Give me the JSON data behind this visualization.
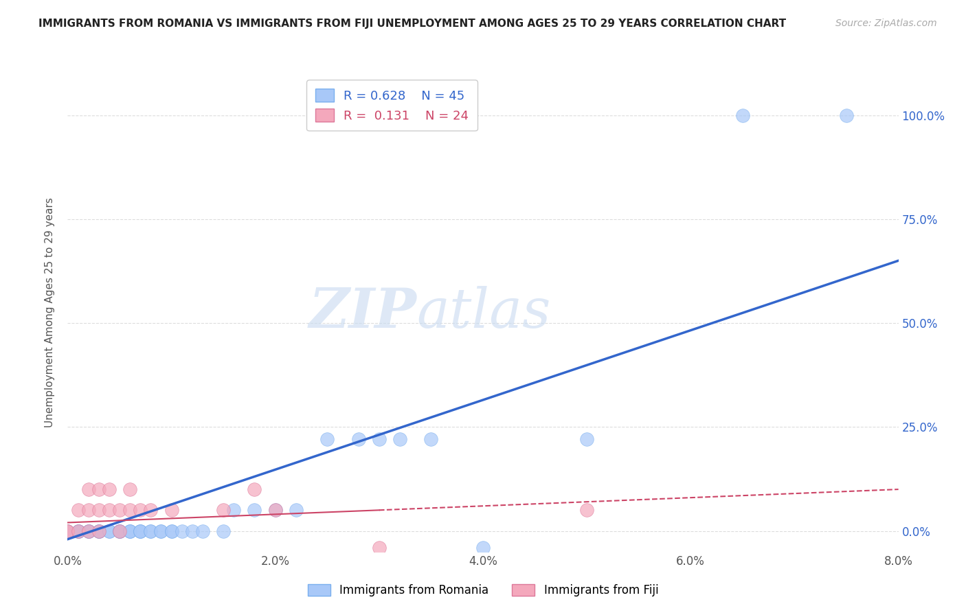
{
  "title": "IMMIGRANTS FROM ROMANIA VS IMMIGRANTS FROM FIJI UNEMPLOYMENT AMONG AGES 25 TO 29 YEARS CORRELATION CHART",
  "source": "Source: ZipAtlas.com",
  "ylabel": "Unemployment Among Ages 25 to 29 years",
  "xlim": [
    0.0,
    0.08
  ],
  "ylim": [
    -0.05,
    1.1
  ],
  "romania_R": 0.628,
  "romania_N": 45,
  "fiji_R": 0.131,
  "fiji_N": 24,
  "romania_color": "#a8c8f8",
  "fiji_color": "#f4a8bc",
  "romania_line_color": "#3366cc",
  "fiji_line_color": "#cc4466",
  "romania_scatter": [
    [
      0.0,
      0.0
    ],
    [
      0.0,
      0.0
    ],
    [
      0.001,
      0.0
    ],
    [
      0.001,
      0.0
    ],
    [
      0.001,
      0.0
    ],
    [
      0.002,
      0.0
    ],
    [
      0.002,
      0.0
    ],
    [
      0.002,
      0.0
    ],
    [
      0.003,
      0.0
    ],
    [
      0.003,
      0.0
    ],
    [
      0.003,
      0.0
    ],
    [
      0.004,
      0.0
    ],
    [
      0.004,
      0.0
    ],
    [
      0.005,
      0.0
    ],
    [
      0.005,
      0.0
    ],
    [
      0.005,
      0.0
    ],
    [
      0.006,
      0.0
    ],
    [
      0.006,
      0.0
    ],
    [
      0.006,
      0.0
    ],
    [
      0.007,
      0.0
    ],
    [
      0.007,
      0.0
    ],
    [
      0.007,
      0.0
    ],
    [
      0.008,
      0.0
    ],
    [
      0.008,
      0.0
    ],
    [
      0.009,
      0.0
    ],
    [
      0.009,
      0.0
    ],
    [
      0.01,
      0.0
    ],
    [
      0.01,
      0.0
    ],
    [
      0.011,
      0.0
    ],
    [
      0.012,
      0.0
    ],
    [
      0.013,
      0.0
    ],
    [
      0.015,
      0.0
    ],
    [
      0.016,
      0.05
    ],
    [
      0.018,
      0.05
    ],
    [
      0.02,
      0.05
    ],
    [
      0.022,
      0.05
    ],
    [
      0.025,
      0.22
    ],
    [
      0.028,
      0.22
    ],
    [
      0.03,
      0.22
    ],
    [
      0.032,
      0.22
    ],
    [
      0.035,
      0.22
    ],
    [
      0.04,
      -0.04
    ],
    [
      0.05,
      0.22
    ],
    [
      0.065,
      1.0
    ],
    [
      0.075,
      1.0
    ]
  ],
  "fiji_scatter": [
    [
      0.0,
      0.0
    ],
    [
      0.0,
      0.0
    ],
    [
      0.001,
      0.0
    ],
    [
      0.001,
      0.05
    ],
    [
      0.002,
      0.0
    ],
    [
      0.002,
      0.05
    ],
    [
      0.002,
      0.1
    ],
    [
      0.003,
      0.0
    ],
    [
      0.003,
      0.05
    ],
    [
      0.003,
      0.1
    ],
    [
      0.004,
      0.05
    ],
    [
      0.004,
      0.1
    ],
    [
      0.005,
      0.0
    ],
    [
      0.005,
      0.05
    ],
    [
      0.006,
      0.05
    ],
    [
      0.006,
      0.1
    ],
    [
      0.007,
      0.05
    ],
    [
      0.008,
      0.05
    ],
    [
      0.01,
      0.05
    ],
    [
      0.015,
      0.05
    ],
    [
      0.018,
      0.1
    ],
    [
      0.02,
      0.05
    ],
    [
      0.03,
      -0.04
    ],
    [
      0.05,
      0.05
    ]
  ],
  "ytick_labels": [
    "0.0%",
    "25.0%",
    "50.0%",
    "75.0%",
    "100.0%"
  ],
  "ytick_values": [
    0.0,
    0.25,
    0.5,
    0.75,
    1.0
  ],
  "xtick_labels": [
    "0.0%",
    "2.0%",
    "4.0%",
    "6.0%",
    "8.0%"
  ],
  "xtick_values": [
    0.0,
    0.02,
    0.04,
    0.06,
    0.08
  ],
  "watermark_zip": "ZIP",
  "watermark_atlas": "atlas",
  "background_color": "#ffffff",
  "grid_color": "#dddddd"
}
